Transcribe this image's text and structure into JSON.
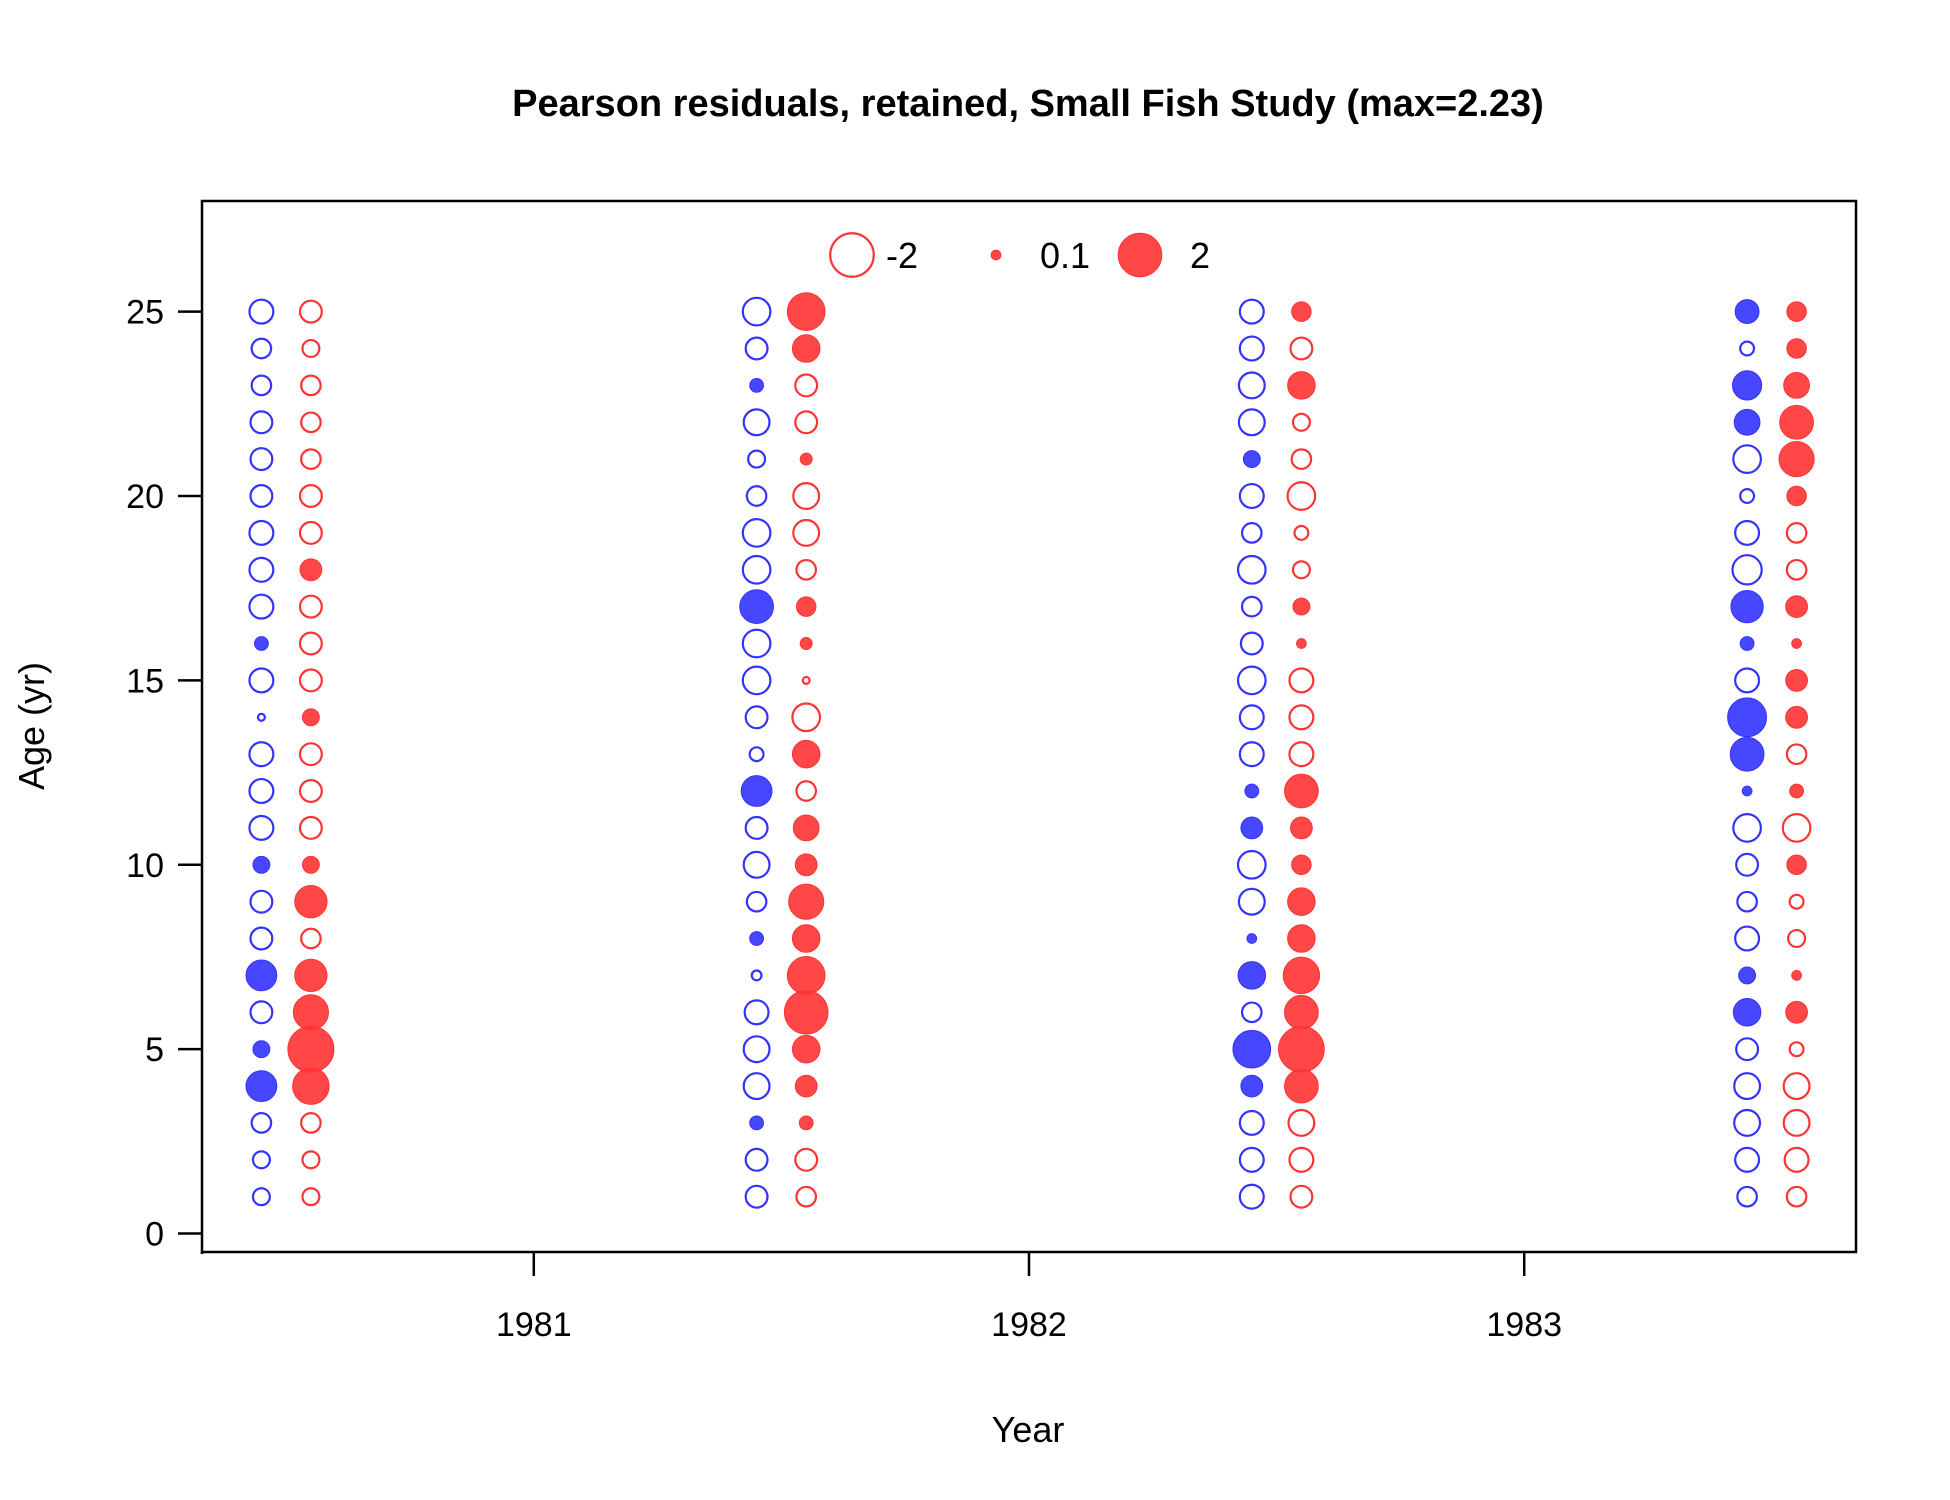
{
  "chart_data": {
    "type": "scatter",
    "subtype": "bubble-residuals",
    "title": "Pearson residuals, retained, Small Fish Study (max=2.23)",
    "xlabel": "Year",
    "ylabel": "Age (yr)",
    "xlim": [
      1980.33,
      1983.67
    ],
    "ylim": [
      -0.5,
      28
    ],
    "x_ticks": [
      1981,
      1982,
      1983
    ],
    "y_ticks": [
      0,
      5,
      10,
      15,
      20,
      25
    ],
    "legend": {
      "placement": "top-center",
      "entries": [
        {
          "label": "-2",
          "value": -2
        },
        {
          "label": "0.1",
          "value": 0.1
        },
        {
          "label": "2",
          "value": 2
        }
      ]
    },
    "colors": {
      "series_a": "#3333ff",
      "series_b": "#ff3333",
      "fill_alpha": 0.9
    },
    "series": [
      {
        "x": 1980.45,
        "color": "blue",
        "ages": [
          1,
          2,
          3,
          4,
          5,
          6,
          7,
          8,
          9,
          10,
          11,
          12,
          13,
          14,
          15,
          16,
          17,
          18,
          19,
          20,
          21,
          22,
          23,
          24,
          25
        ],
        "residuals": [
          -0.3,
          -0.3,
          -0.4,
          1.0,
          0.3,
          -0.5,
          1.0,
          -0.5,
          -0.5,
          0.3,
          -0.6,
          -0.6,
          -0.6,
          -0.05,
          -0.6,
          0.2,
          -0.6,
          -0.6,
          -0.6,
          -0.5,
          -0.5,
          -0.5,
          -0.4,
          -0.4,
          -0.6
        ]
      },
      {
        "x": 1980.55,
        "color": "red",
        "ages": [
          1,
          2,
          3,
          4,
          5,
          6,
          7,
          8,
          9,
          10,
          11,
          12,
          13,
          14,
          15,
          16,
          17,
          18,
          19,
          20,
          21,
          22,
          23,
          24,
          25
        ],
        "residuals": [
          -0.3,
          -0.3,
          -0.4,
          1.4,
          2.23,
          1.3,
          1.1,
          -0.4,
          1.1,
          0.3,
          -0.5,
          -0.5,
          -0.5,
          0.3,
          -0.5,
          -0.5,
          -0.5,
          0.5,
          -0.5,
          -0.5,
          -0.4,
          -0.4,
          -0.4,
          -0.3,
          -0.5
        ]
      },
      {
        "x": 1981.45,
        "color": "blue",
        "ages": [
          1,
          2,
          3,
          4,
          5,
          6,
          7,
          8,
          9,
          10,
          11,
          12,
          13,
          14,
          15,
          16,
          17,
          18,
          19,
          20,
          21,
          22,
          23,
          24,
          25
        ],
        "residuals": [
          -0.5,
          -0.5,
          0.2,
          -0.7,
          -0.7,
          -0.6,
          -0.1,
          0.2,
          -0.4,
          -0.7,
          -0.5,
          1.0,
          -0.2,
          -0.5,
          -0.8,
          -0.8,
          1.2,
          -0.8,
          -0.8,
          -0.4,
          -0.3,
          -0.7,
          0.2,
          -0.5,
          -0.8
        ]
      },
      {
        "x": 1981.55,
        "color": "red",
        "ages": [
          1,
          2,
          3,
          4,
          5,
          6,
          7,
          8,
          9,
          10,
          11,
          12,
          13,
          14,
          15,
          16,
          17,
          18,
          19,
          20,
          21,
          22,
          23,
          24,
          25
        ],
        "residuals": [
          -0.4,
          -0.5,
          0.2,
          0.5,
          0.8,
          2.0,
          1.5,
          0.8,
          1.3,
          0.5,
          0.7,
          -0.4,
          0.8,
          -0.8,
          -0.05,
          0.15,
          0.4,
          -0.4,
          -0.7,
          -0.7,
          0.15,
          -0.5,
          -0.5,
          0.8,
          1.5
        ]
      },
      {
        "x": 1982.45,
        "color": "blue",
        "ages": [
          1,
          2,
          3,
          4,
          5,
          6,
          7,
          8,
          9,
          10,
          11,
          12,
          13,
          14,
          15,
          16,
          17,
          18,
          19,
          20,
          21,
          22,
          23,
          24,
          25
        ],
        "residuals": [
          -0.6,
          -0.6,
          -0.6,
          0.5,
          1.5,
          -0.4,
          0.8,
          0.1,
          -0.7,
          -0.8,
          0.5,
          0.2,
          -0.6,
          -0.6,
          -0.8,
          -0.5,
          -0.4,
          -0.8,
          -0.4,
          -0.6,
          0.3,
          -0.7,
          -0.7,
          -0.6,
          -0.6
        ]
      },
      {
        "x": 1982.55,
        "color": "red",
        "ages": [
          1,
          2,
          3,
          4,
          5,
          6,
          7,
          8,
          9,
          10,
          11,
          12,
          13,
          14,
          15,
          16,
          17,
          18,
          19,
          20,
          21,
          22,
          23,
          24,
          25
        ],
        "residuals": [
          -0.5,
          -0.6,
          -0.7,
          1.2,
          2.2,
          1.2,
          1.4,
          0.8,
          0.8,
          0.4,
          0.5,
          1.2,
          -0.6,
          -0.6,
          -0.6,
          0.1,
          0.3,
          -0.3,
          -0.2,
          -0.8,
          -0.4,
          -0.3,
          0.8,
          -0.5,
          0.4
        ]
      },
      {
        "x": 1983.45,
        "color": "blue",
        "ages": [
          1,
          2,
          3,
          4,
          5,
          6,
          7,
          8,
          9,
          10,
          11,
          12,
          13,
          14,
          15,
          16,
          17,
          18,
          19,
          20,
          21,
          22,
          23,
          24,
          25
        ],
        "residuals": [
          -0.4,
          -0.6,
          -0.7,
          -0.7,
          -0.5,
          0.8,
          0.3,
          -0.6,
          -0.4,
          -0.5,
          -0.8,
          0.1,
          1.2,
          1.6,
          -0.6,
          0.2,
          1.1,
          -0.9,
          -0.6,
          -0.2,
          -0.8,
          0.7,
          0.9,
          -0.2,
          0.6
        ]
      },
      {
        "x": 1983.55,
        "color": "red",
        "ages": [
          1,
          2,
          3,
          4,
          5,
          6,
          7,
          8,
          9,
          10,
          11,
          12,
          13,
          14,
          15,
          16,
          17,
          18,
          19,
          20,
          21,
          22,
          23,
          24,
          25
        ],
        "residuals": [
          -0.4,
          -0.6,
          -0.7,
          -0.7,
          -0.2,
          0.5,
          0.1,
          -0.3,
          -0.2,
          0.4,
          -0.8,
          0.2,
          -0.4,
          0.5,
          0.5,
          0.1,
          0.5,
          -0.4,
          -0.4,
          0.4,
          1.3,
          1.2,
          0.7,
          0.4,
          0.4
        ]
      }
    ]
  }
}
